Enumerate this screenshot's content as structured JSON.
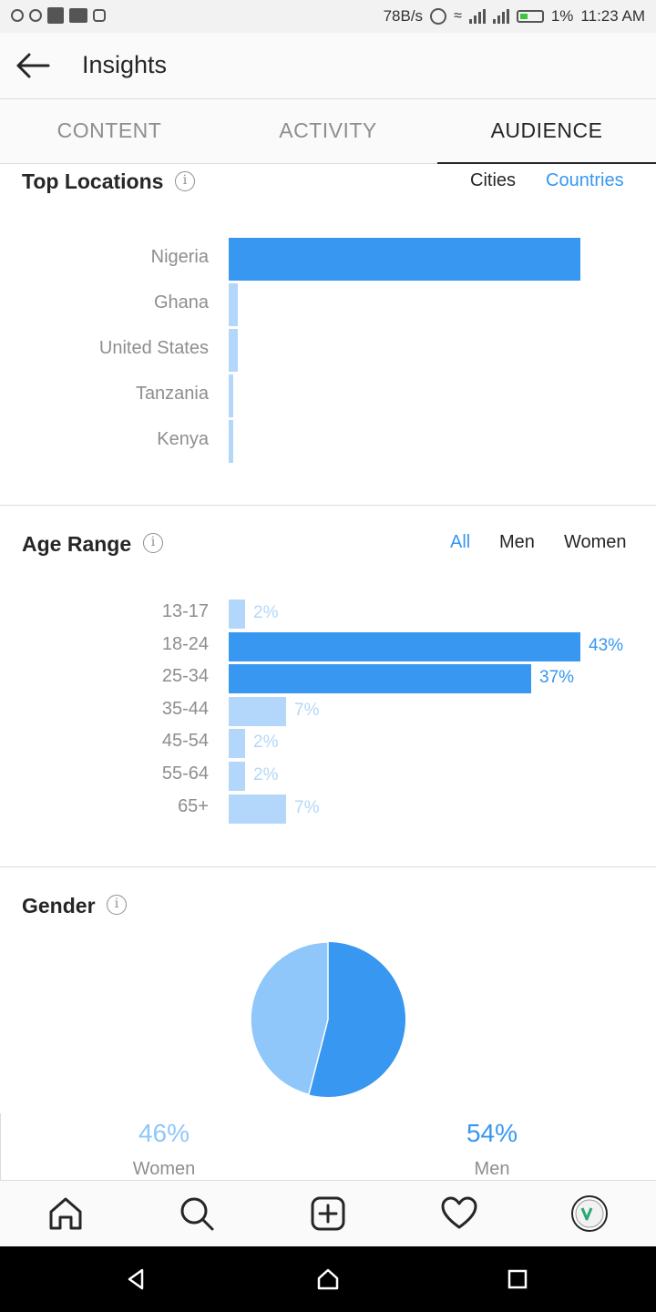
{
  "status_bar": {
    "net_speed": "78B/s",
    "battery": "1%",
    "time": "11:23 AM"
  },
  "app_bar": {
    "title": "Insights"
  },
  "tabs": [
    {
      "label": "CONTENT"
    },
    {
      "label": "ACTIVITY"
    },
    {
      "label": "AUDIENCE",
      "active": true
    }
  ],
  "top_locations": {
    "title": "Top Locations",
    "toggles": [
      "Cities",
      "Countries"
    ],
    "selected_toggle": "Countries",
    "chart_data": {
      "type": "bar",
      "orientation": "horizontal",
      "categories": [
        "Nigeria",
        "Ghana",
        "United States",
        "Tanzania",
        "Kenya"
      ],
      "values": [
        100,
        2.5,
        2.5,
        1.3,
        1.3
      ],
      "unit": "relative share"
    }
  },
  "age_range": {
    "title": "Age Range",
    "toggles": [
      "All",
      "Men",
      "Women"
    ],
    "selected_toggle": "All",
    "chart_data": {
      "type": "bar",
      "orientation": "horizontal",
      "categories": [
        "13-17",
        "18-24",
        "25-34",
        "35-44",
        "45-54",
        "55-64",
        "65+"
      ],
      "values": [
        2,
        43,
        37,
        7,
        2,
        2,
        7
      ],
      "labels": [
        "2%",
        "43%",
        "37%",
        "7%",
        "2%",
        "2%",
        "7%"
      ],
      "unit": "%"
    }
  },
  "gender": {
    "title": "Gender",
    "chart_data": {
      "type": "pie",
      "categories": [
        "Women",
        "Men"
      ],
      "values": [
        46,
        54
      ],
      "labels": [
        "46%",
        "54%"
      ]
    }
  },
  "colors": {
    "primary": "#3897f0",
    "light": "#b3d7fa",
    "pie_light": "#8fc7fa",
    "text": "#262626",
    "muted": "#8e8e8e"
  },
  "bottom_nav": [
    "home-icon",
    "search-icon",
    "add-post-icon",
    "heart-icon",
    "profile-avatar"
  ]
}
